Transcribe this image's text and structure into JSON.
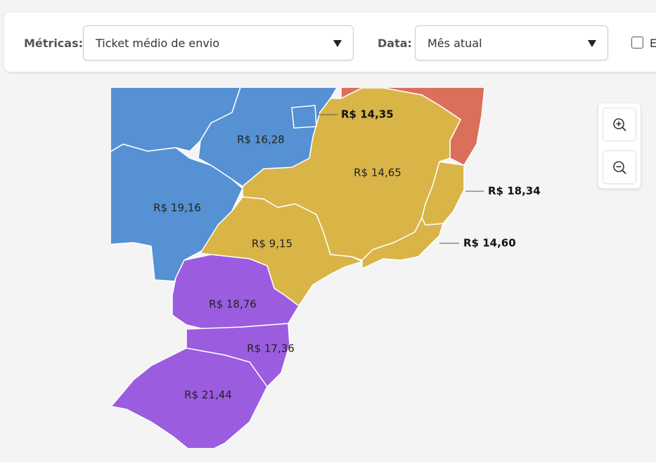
{
  "filters": {
    "metric": {
      "label": "Métricas:",
      "value": "Ticket médio de envio"
    },
    "date": {
      "label": "Data:",
      "value": "Mês atual"
    },
    "checkbox": {
      "label": "E"
    }
  },
  "map": {
    "regions": [
      {
        "label": "R$ 14,35"
      },
      {
        "label": "R$ 16,28"
      },
      {
        "label": "R$ 14,65"
      },
      {
        "label": "R$ 18,34"
      },
      {
        "label": "R$ 19,16"
      },
      {
        "label": "R$ 14,60"
      },
      {
        "label": "R$ 9,15"
      },
      {
        "label": "R$ 18,76"
      },
      {
        "label": "R$ 17,36"
      },
      {
        "label": "R$ 21,44"
      }
    ]
  }
}
